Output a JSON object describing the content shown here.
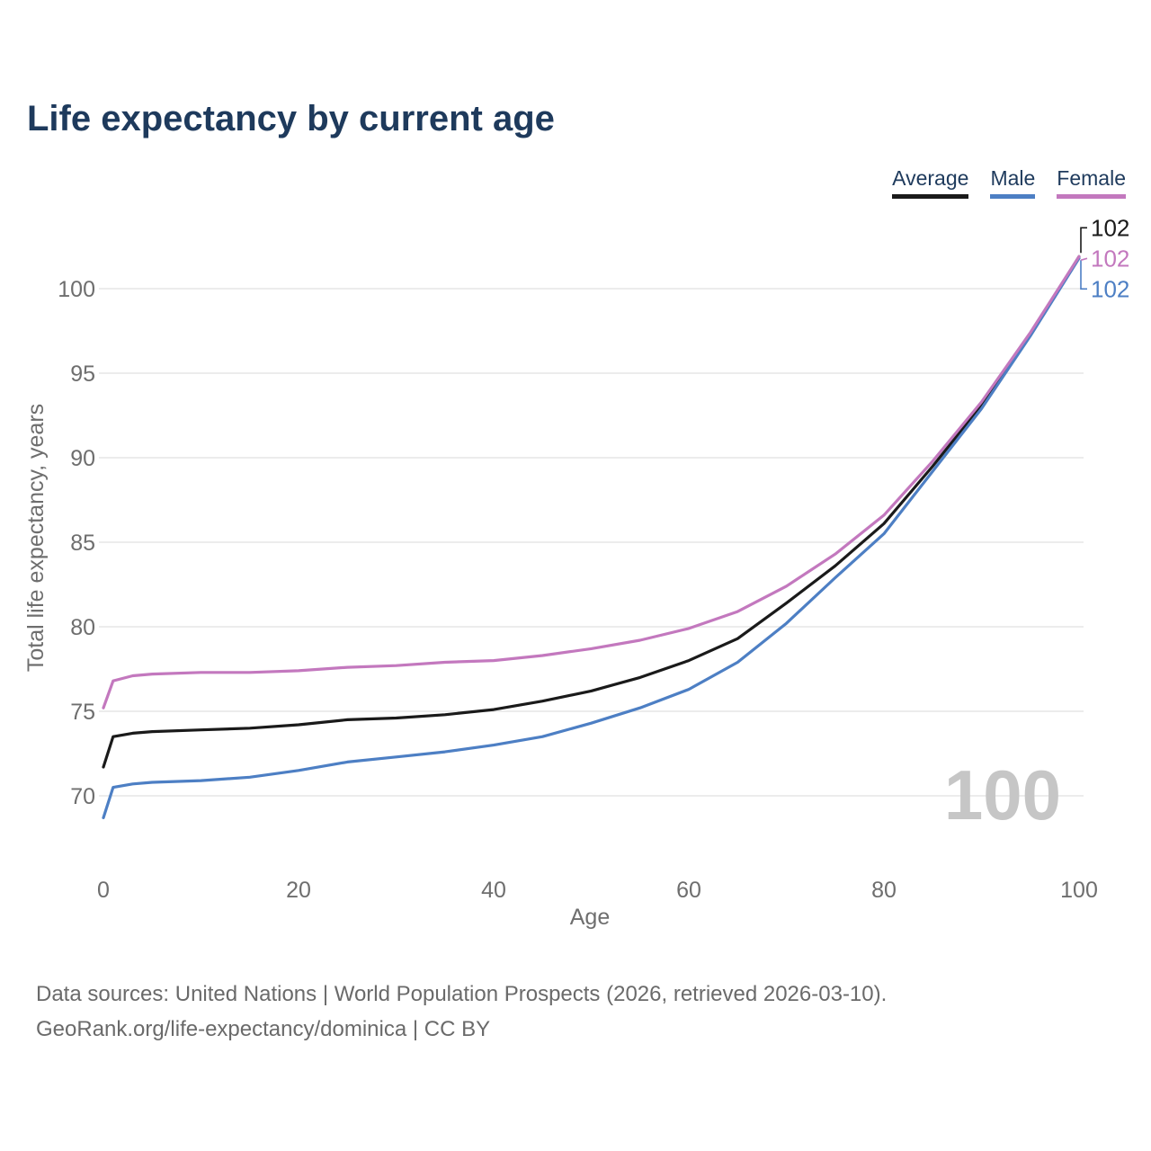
{
  "title": "Life expectancy by current age",
  "legend": {
    "items": [
      {
        "label": "Average",
        "color": "#1a1a1a"
      },
      {
        "label": "Male",
        "color": "#4d7fc4"
      },
      {
        "label": "Female",
        "color": "#c378be"
      }
    ]
  },
  "chart_data": {
    "type": "line",
    "title": "Life expectancy by current age",
    "xlabel": "Age",
    "ylabel": "Total life expectancy, years",
    "x_ticks": [
      0,
      20,
      40,
      60,
      80,
      100
    ],
    "y_ticks": [
      70,
      75,
      80,
      85,
      90,
      95,
      100
    ],
    "xlim": [
      0,
      100
    ],
    "ylim": [
      68,
      103
    ],
    "grid": "horizontal",
    "legend_position": "top-right",
    "watermark": "100",
    "x": [
      0,
      1,
      3,
      5,
      10,
      15,
      20,
      25,
      30,
      35,
      40,
      45,
      50,
      55,
      60,
      65,
      70,
      75,
      80,
      85,
      90,
      95,
      100
    ],
    "series": [
      {
        "name": "Average",
        "color": "#1a1a1a",
        "end_label": "102",
        "values": [
          71.7,
          73.5,
          73.7,
          73.8,
          73.9,
          74.0,
          74.2,
          74.5,
          74.6,
          74.8,
          75.1,
          75.6,
          76.2,
          77.0,
          78.0,
          79.3,
          81.4,
          83.6,
          86.1,
          89.5,
          93.1,
          97.3,
          101.9
        ]
      },
      {
        "name": "Male",
        "color": "#4d7fc4",
        "end_label": "102",
        "values": [
          68.7,
          70.5,
          70.7,
          70.8,
          70.9,
          71.1,
          71.5,
          72.0,
          72.3,
          72.6,
          73.0,
          73.5,
          74.3,
          75.2,
          76.3,
          77.9,
          80.2,
          82.9,
          85.5,
          89.2,
          92.9,
          97.2,
          101.8
        ]
      },
      {
        "name": "Female",
        "color": "#c378be",
        "end_label": "102",
        "values": [
          75.2,
          76.8,
          77.1,
          77.2,
          77.3,
          77.3,
          77.4,
          77.6,
          77.7,
          77.9,
          78.0,
          78.3,
          78.7,
          79.2,
          79.9,
          80.9,
          82.4,
          84.3,
          86.6,
          89.8,
          93.3,
          97.4,
          101.9
        ]
      }
    ]
  },
  "footer": {
    "line1": "Data sources: United Nations | World Population Prospects (2026, retrieved 2026-03-10).",
    "line2": "GeoRank.org/life-expectancy/dominica | CC BY"
  }
}
